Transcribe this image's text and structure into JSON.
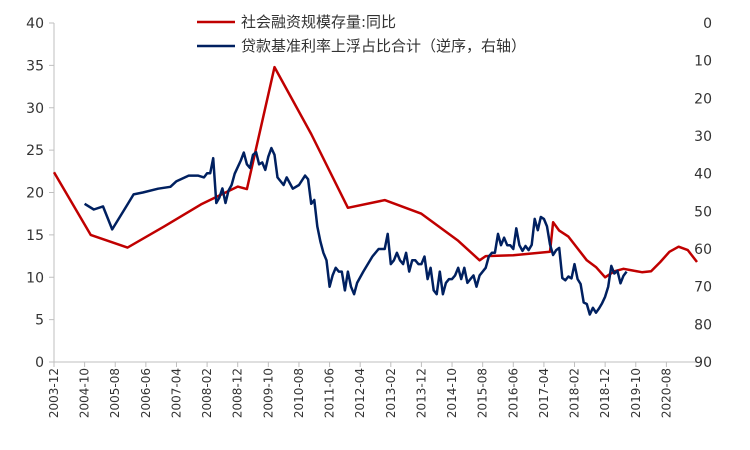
{
  "chart_data": {
    "type": "line",
    "x_axis": {
      "labels": [
        "2003-12",
        "2004-10",
        "2005-08",
        "2006-06",
        "2007-04",
        "2008-02",
        "2008-12",
        "2009-10",
        "2010-08",
        "2011-06",
        "2012-04",
        "2013-02",
        "2013-12",
        "2014-10",
        "2015-08",
        "2016-06",
        "2017-04",
        "2018-02",
        "2018-12",
        "2019-10",
        "2020-08"
      ],
      "start": "2003-12",
      "end": "2021-06"
    },
    "left_axis": {
      "min": 0,
      "max": 40,
      "ticks": [
        "0",
        "5",
        "10",
        "15",
        "20",
        "25",
        "30",
        "35",
        "40"
      ]
    },
    "right_axis": {
      "min": 0,
      "max": 90,
      "reversed": true,
      "ticks": [
        "0",
        "10",
        "20",
        "30",
        "40",
        "50",
        "60",
        "70",
        "80",
        "90"
      ]
    },
    "grid": false,
    "legend_position": "top-center",
    "series": [
      {
        "name": "社会融资规模存量:同比",
        "axis": "left",
        "color": "#c00000",
        "points": [
          [
            "2003-12",
            22.4
          ],
          [
            "2004-12",
            15.0
          ],
          [
            "2005-12",
            13.5
          ],
          [
            "2006-12",
            16.0
          ],
          [
            "2007-12",
            18.6
          ],
          [
            "2008-12",
            20.7
          ],
          [
            "2009-03",
            20.4
          ],
          [
            "2009-12",
            34.8
          ],
          [
            "2010-12",
            26.9
          ],
          [
            "2011-12",
            18.2
          ],
          [
            "2012-12",
            19.1
          ],
          [
            "2013-12",
            17.5
          ],
          [
            "2014-12",
            14.3
          ],
          [
            "2015-07",
            12.0
          ],
          [
            "2015-09",
            12.5
          ],
          [
            "2016-06",
            12.6
          ],
          [
            "2016-12",
            12.8
          ],
          [
            "2017-06",
            13.0
          ],
          [
            "2017-07",
            16.5
          ],
          [
            "2017-09",
            15.5
          ],
          [
            "2017-12",
            14.8
          ],
          [
            "2018-06",
            12.0
          ],
          [
            "2018-09",
            11.2
          ],
          [
            "2018-12",
            10.0
          ],
          [
            "2019-03",
            10.7
          ],
          [
            "2019-06",
            11.0
          ],
          [
            "2019-09",
            10.8
          ],
          [
            "2019-12",
            10.6
          ],
          [
            "2020-03",
            10.7
          ],
          [
            "2020-06",
            11.8
          ],
          [
            "2020-09",
            13.0
          ],
          [
            "2020-12",
            13.6
          ],
          [
            "2021-03",
            13.2
          ],
          [
            "2021-06",
            11.8
          ]
        ]
      },
      {
        "name": "贷款基准利率上浮占比合计（逆序，右轴）",
        "axis": "right",
        "color": "#002060",
        "points": [
          [
            "2004-10",
            48
          ],
          [
            "2005-01",
            49.5
          ],
          [
            "2005-04",
            48.7
          ],
          [
            "2005-07",
            54.8
          ],
          [
            "2005-11",
            49.5
          ],
          [
            "2006-02",
            45.5
          ],
          [
            "2006-05",
            45
          ],
          [
            "2006-10",
            44
          ],
          [
            "2007-02",
            43.5
          ],
          [
            "2007-04",
            42
          ],
          [
            "2007-08",
            40.5
          ],
          [
            "2007-11",
            40.5
          ],
          [
            "2008-01",
            41
          ],
          [
            "2008-02",
            39.9
          ],
          [
            "2008-03",
            39.9
          ],
          [
            "2008-04",
            35.9
          ],
          [
            "2008-05",
            47.8
          ],
          [
            "2008-06",
            46.4
          ],
          [
            "2008-07",
            43.9
          ],
          [
            "2008-08",
            47.8
          ],
          [
            "2008-09",
            44.5
          ],
          [
            "2008-10",
            43
          ],
          [
            "2008-11",
            40
          ],
          [
            "2009-01",
            36.5
          ],
          [
            "2009-02",
            34.4
          ],
          [
            "2009-03",
            37.5
          ],
          [
            "2009-04",
            38.5
          ],
          [
            "2009-05",
            35
          ],
          [
            "2009-06",
            34.3
          ],
          [
            "2009-07",
            37.5
          ],
          [
            "2009-08",
            37
          ],
          [
            "2009-09",
            39
          ],
          [
            "2009-10",
            35.5
          ],
          [
            "2009-11",
            33.2
          ],
          [
            "2009-12",
            35
          ],
          [
            "2010-01",
            41
          ],
          [
            "2010-03",
            43
          ],
          [
            "2010-04",
            41
          ],
          [
            "2010-06",
            44
          ],
          [
            "2010-08",
            43
          ],
          [
            "2010-10",
            40.5
          ],
          [
            "2010-11",
            41.5
          ],
          [
            "2010-12",
            48
          ],
          [
            "2011-01",
            47
          ],
          [
            "2011-02",
            54
          ],
          [
            "2011-03",
            58
          ],
          [
            "2011-04",
            61
          ],
          [
            "2011-05",
            63
          ],
          [
            "2011-06",
            70
          ],
          [
            "2011-07",
            67
          ],
          [
            "2011-08",
            65
          ],
          [
            "2011-09",
            66
          ],
          [
            "2011-10",
            66
          ],
          [
            "2011-11",
            71
          ],
          [
            "2011-12",
            66
          ],
          [
            "2012-01",
            70
          ],
          [
            "2012-02",
            72
          ],
          [
            "2012-03",
            69
          ],
          [
            "2012-05",
            66
          ],
          [
            "2012-08",
            62
          ],
          [
            "2012-10",
            60
          ],
          [
            "2012-12",
            60
          ],
          [
            "2013-01",
            56
          ],
          [
            "2013-02",
            64
          ],
          [
            "2013-03",
            63
          ],
          [
            "2013-04",
            61
          ],
          [
            "2013-05",
            63
          ],
          [
            "2013-06",
            64
          ],
          [
            "2013-07",
            61
          ],
          [
            "2013-08",
            66
          ],
          [
            "2013-09",
            63
          ],
          [
            "2013-10",
            63
          ],
          [
            "2013-11",
            64
          ],
          [
            "2013-12",
            64
          ],
          [
            "2014-01",
            62
          ],
          [
            "2014-02",
            68
          ],
          [
            "2014-03",
            65
          ],
          [
            "2014-04",
            71
          ],
          [
            "2014-05",
            72
          ],
          [
            "2014-06",
            66
          ],
          [
            "2014-07",
            72
          ],
          [
            "2014-08",
            69
          ],
          [
            "2014-09",
            68
          ],
          [
            "2014-10",
            68
          ],
          [
            "2014-11",
            67
          ],
          [
            "2014-12",
            65
          ],
          [
            "2015-01",
            68
          ],
          [
            "2015-02",
            65
          ],
          [
            "2015-03",
            69
          ],
          [
            "2015-04",
            68
          ],
          [
            "2015-05",
            67
          ],
          [
            "2015-06",
            70
          ],
          [
            "2015-07",
            67
          ],
          [
            "2015-08",
            66
          ],
          [
            "2015-09",
            65
          ],
          [
            "2015-10",
            62
          ],
          [
            "2015-11",
            61
          ],
          [
            "2015-12",
            61
          ],
          [
            "2016-01",
            56
          ],
          [
            "2016-02",
            59
          ],
          [
            "2016-03",
            57
          ],
          [
            "2016-04",
            59
          ],
          [
            "2016-05",
            59
          ],
          [
            "2016-06",
            60
          ],
          [
            "2016-07",
            54.5
          ],
          [
            "2016-08",
            59
          ],
          [
            "2016-09",
            60.5
          ],
          [
            "2016-10",
            59.2
          ],
          [
            "2016-11",
            60.3
          ],
          [
            "2016-12",
            58.9
          ],
          [
            "2017-01",
            52
          ],
          [
            "2017-02",
            55
          ],
          [
            "2017-03",
            51.5
          ],
          [
            "2017-04",
            52
          ],
          [
            "2017-05",
            54
          ],
          [
            "2017-06",
            58.8
          ],
          [
            "2017-07",
            61.6
          ],
          [
            "2017-08",
            60.3
          ],
          [
            "2017-09",
            59.7
          ],
          [
            "2017-10",
            67.7
          ],
          [
            "2017-11",
            68.3
          ],
          [
            "2017-12",
            67.3
          ],
          [
            "2018-01",
            67.8
          ],
          [
            "2018-02",
            64
          ],
          [
            "2018-03",
            68
          ],
          [
            "2018-04",
            69.3
          ],
          [
            "2018-05",
            74.2
          ],
          [
            "2018-06",
            74.6
          ],
          [
            "2018-07",
            77.4
          ],
          [
            "2018-08",
            75.6
          ],
          [
            "2018-09",
            76.9
          ],
          [
            "2018-10",
            75.8
          ],
          [
            "2018-11",
            74.4
          ],
          [
            "2018-12",
            72.7
          ],
          [
            "2019-01",
            70
          ],
          [
            "2019-02",
            64.5
          ],
          [
            "2019-03",
            66.5
          ],
          [
            "2019-04",
            65.8
          ],
          [
            "2019-05",
            69.1
          ],
          [
            "2019-06",
            67.1
          ],
          [
            "2019-07",
            66
          ]
        ]
      }
    ]
  }
}
